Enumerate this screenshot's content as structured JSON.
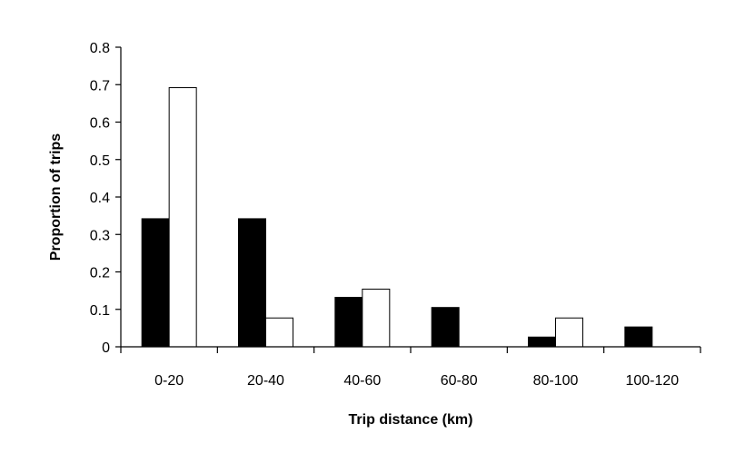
{
  "chart_data": {
    "type": "bar",
    "title": "",
    "xlabel": "Trip distance (km)",
    "ylabel": "Proportion of trips",
    "categories": [
      "0-20",
      "20-40",
      "40-60",
      "60-80",
      "80-100",
      "100-120"
    ],
    "series": [
      {
        "values": [
          0.342,
          0.342,
          0.132,
          0.105,
          0.026,
          0.053
        ],
        "fill": "#000000"
      },
      {
        "values": [
          0.692,
          0.077,
          0.154,
          0,
          0.077,
          0
        ],
        "fill": "#ffffff"
      }
    ],
    "ylim": [
      0,
      0.8
    ],
    "yticks": [
      "0",
      "0.1",
      "0.2",
      "0.3",
      "0.4",
      "0.5",
      "0.6",
      "0.7",
      "0.8"
    ],
    "grid": false,
    "legend": "none"
  }
}
